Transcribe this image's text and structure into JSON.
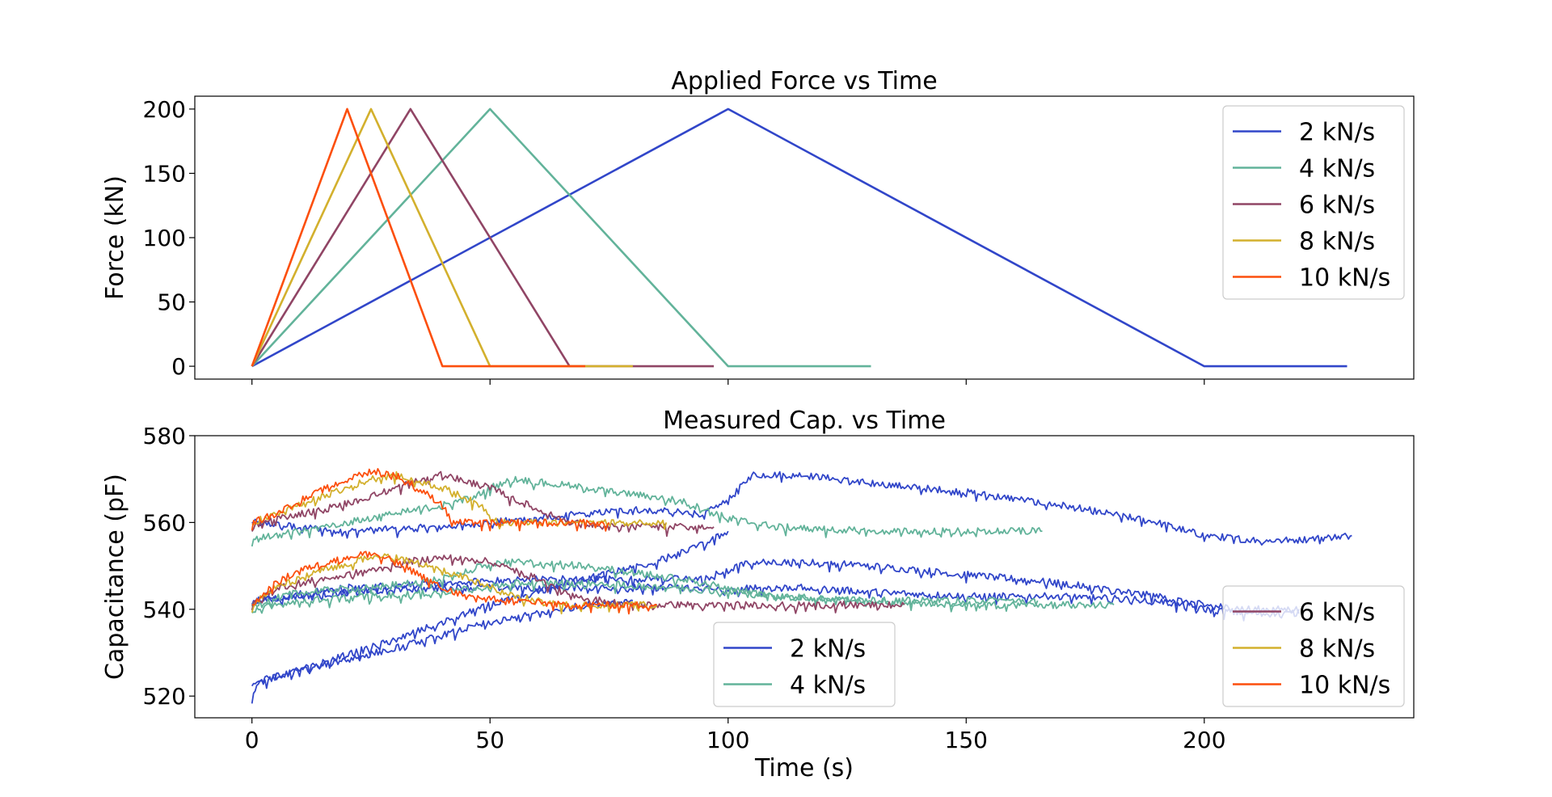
{
  "chart_data": [
    {
      "type": "line",
      "title": "Applied Force vs Time",
      "xlabel": "",
      "ylabel": "Force (kN)",
      "xlim": [
        -12,
        244
      ],
      "ylim": [
        -10,
        210
      ],
      "xticks": [
        0,
        50,
        100,
        150,
        200
      ],
      "yticks": [
        0,
        50,
        100,
        150,
        200
      ],
      "ytick_labels": [
        "0",
        "50",
        "100",
        "150",
        "200"
      ],
      "grid": false,
      "legend_position": "upper right",
      "series": [
        {
          "name": "2 kN/s",
          "color": "#3146c9",
          "x": [
            0,
            100,
            200,
            230
          ],
          "y": [
            0,
            200,
            0,
            0
          ]
        },
        {
          "name": "4 kN/s",
          "color": "#62b39a",
          "x": [
            0,
            50,
            100,
            130
          ],
          "y": [
            0,
            200,
            0,
            0
          ]
        },
        {
          "name": "6 kN/s",
          "color": "#904565",
          "x": [
            0,
            33.3,
            66.7,
            97
          ],
          "y": [
            0,
            200,
            0,
            0
          ]
        },
        {
          "name": "8 kN/s",
          "color": "#d3b02d",
          "x": [
            0,
            25,
            50,
            80
          ],
          "y": [
            0,
            200,
            0,
            0
          ]
        },
        {
          "name": "10 kN/s",
          "color": "#fc4f0d",
          "x": [
            0,
            20,
            40,
            70
          ],
          "y": [
            0,
            200,
            0,
            0
          ]
        }
      ]
    },
    {
      "type": "line",
      "title": "Measured Cap. vs Time",
      "xlabel": "Time (s)",
      "ylabel": "Capacitance (pF)",
      "xlim": [
        -12,
        244
      ],
      "ylim": [
        515,
        580
      ],
      "xticks": [
        0,
        50,
        100,
        150,
        200
      ],
      "xtick_labels": [
        "0",
        "50",
        "100",
        "150",
        "200"
      ],
      "yticks": [
        520,
        540,
        560,
        580
      ],
      "ytick_labels": [
        "520",
        "540",
        "560",
        "580"
      ],
      "grid": false,
      "legends": [
        {
          "position": "lower center",
          "entries": [
            "2 kN/s",
            "4 kN/s"
          ]
        },
        {
          "position": "lower right",
          "entries": [
            "6 kN/s",
            "8 kN/s",
            "10 kN/s"
          ]
        }
      ],
      "series": [
        {
          "name": "2 kN/s",
          "color": "#3146c9",
          "traces": [
            {
              "x": [
                0,
                20,
                40,
                60,
                80,
                95,
                100,
                105,
                115,
                130,
                150,
                170,
                190,
                200,
                210,
                220,
                231
              ],
              "y": [
                560,
                558,
                559,
                561,
                563,
                562,
                565,
                571,
                571,
                569,
                567,
                564,
                560,
                557,
                556,
                556,
                557
              ]
            },
            {
              "x": [
                0,
                20,
                40,
                60,
                80,
                95,
                100,
                105,
                115,
                130,
                150,
                170,
                190,
                200,
                210,
                220
              ],
              "y": [
                542,
                545,
                546,
                547,
                547,
                547,
                549,
                551,
                551,
                550,
                548,
                546,
                543,
                541,
                540,
                540
              ]
            },
            {
              "x": [
                0,
                20,
                40,
                60,
                80,
                95,
                100,
                105,
                115,
                130,
                150,
                170,
                190,
                200,
                210,
                220
              ],
              "y": [
                542,
                544,
                545,
                545,
                545,
                545,
                544,
                545,
                545,
                544,
                543,
                543,
                542,
                540,
                539,
                539
              ]
            },
            {
              "x": [
                0,
                1,
                10,
                30,
                50,
                70,
                85,
                95,
                100
              ],
              "y": [
                519,
                523,
                526,
                533,
                541,
                547,
                551,
                555,
                558
              ]
            },
            {
              "x": [
                0,
                10,
                30,
                50,
                70,
                80
              ],
              "y": [
                523,
                526,
                531,
                537,
                541,
                542
              ]
            }
          ]
        },
        {
          "name": "4 kN/s",
          "color": "#62b39a",
          "traces": [
            {
              "x": [
                0,
                10,
                25,
                40,
                47,
                50,
                55,
                70,
                90,
                100,
                110,
                130,
                150,
                166
              ],
              "y": [
                556,
                558,
                561,
                564,
                566,
                568,
                570,
                568,
                565,
                561,
                559,
                558,
                558,
                558
              ]
            },
            {
              "x": [
                0,
                10,
                25,
                40,
                48,
                55,
                70,
                90,
                100,
                110,
                130,
                150,
                165
              ],
              "y": [
                541,
                544,
                545,
                547,
                550,
                551,
                550,
                547,
                545,
                543,
                542,
                542,
                542
              ]
            },
            {
              "x": [
                0,
                10,
                25,
                40,
                48,
                55,
                70,
                90,
                100,
                110,
                130,
                150,
                170,
                181
              ],
              "y": [
                540,
                542,
                543,
                544,
                545,
                546,
                546,
                545,
                544,
                543,
                542,
                541,
                541,
                541
              ]
            }
          ]
        },
        {
          "name": "6 kN/s",
          "color": "#904565",
          "traces": [
            {
              "x": [
                0,
                5,
                15,
                25,
                33,
                40,
                50,
                60,
                67,
                75,
                85,
                97
              ],
              "y": [
                559,
                561,
                563,
                566,
                569,
                571,
                568,
                563,
                560,
                559,
                559,
                559
              ]
            },
            {
              "x": [
                0,
                5,
                15,
                25,
                33,
                40,
                50,
                60,
                67,
                80,
                95,
                110,
                125,
                137
              ],
              "y": [
                541,
                545,
                547,
                549,
                551,
                552,
                551,
                547,
                543,
                541,
                541,
                541,
                541,
                541
              ]
            }
          ]
        },
        {
          "name": "8 kN/s",
          "color": "#d3b02d",
          "traces": [
            {
              "x": [
                0,
                5,
                15,
                25,
                30,
                40,
                48,
                52,
                60,
                70,
                87
              ],
              "y": [
                560,
                562,
                566,
                570,
                571,
                568,
                564,
                560,
                560,
                560,
                560
              ]
            },
            {
              "x": [
                0,
                5,
                15,
                25,
                30,
                40,
                48,
                55,
                65,
                75,
                85
              ],
              "y": [
                541,
                545,
                549,
                552,
                552,
                549,
                546,
                543,
                541,
                541,
                541
              ]
            }
          ]
        },
        {
          "name": "10 kN/s",
          "color": "#fc4f0d",
          "traces": [
            {
              "x": [
                0,
                5,
                10,
                20,
                25,
                30,
                35,
                40,
                42,
                50,
                60,
                70,
                75
              ],
              "y": [
                560,
                562,
                565,
                570,
                572,
                571,
                568,
                564,
                560,
                560,
                560,
                560,
                560
              ]
            },
            {
              "x": [
                0,
                5,
                10,
                20,
                25,
                30,
                35,
                40,
                45,
                55,
                65,
                75,
                85
              ],
              "y": [
                541,
                546,
                549,
                552,
                553,
                551,
                548,
                545,
                543,
                542,
                541,
                541,
                541
              ]
            }
          ]
        }
      ]
    }
  ]
}
